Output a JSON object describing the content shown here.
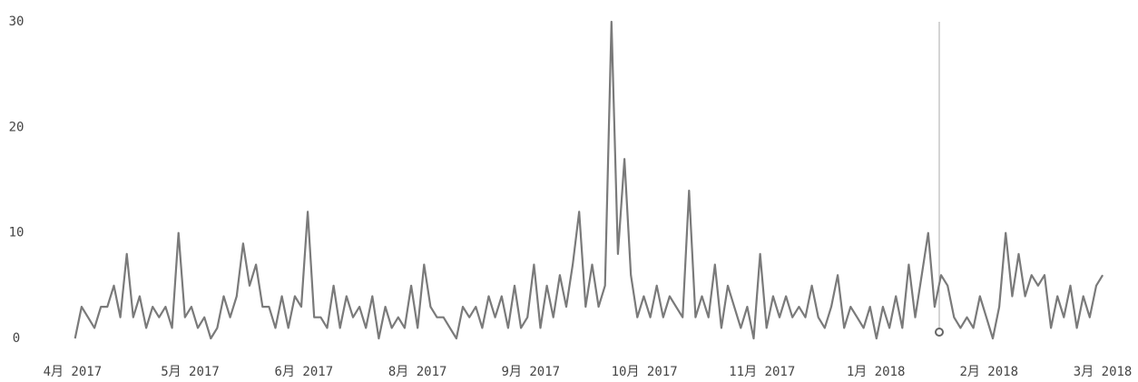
{
  "chart_data": {
    "type": "line",
    "series": [
      {
        "color": "#7a7a7a",
        "values": [
          0,
          3,
          2,
          1,
          3,
          3,
          5,
          2,
          8,
          2,
          4,
          1,
          3,
          2,
          3,
          1,
          10,
          2,
          3,
          1,
          2,
          0,
          1,
          4,
          2,
          4,
          9,
          5,
          7,
          3,
          3,
          1,
          4,
          1,
          4,
          3,
          12,
          2,
          2,
          1,
          5,
          1,
          4,
          2,
          3,
          1,
          4,
          0,
          3,
          1,
          2,
          1,
          5,
          1,
          7,
          3,
          2,
          2,
          1,
          0,
          3,
          2,
          3,
          1,
          4,
          2,
          4,
          1,
          5,
          1,
          2,
          7,
          1,
          5,
          2,
          6,
          3,
          7,
          12,
          3,
          7,
          3,
          5,
          30,
          8,
          17,
          6,
          2,
          4,
          2,
          5,
          2,
          4,
          3,
          2,
          14,
          2,
          4,
          2,
          7,
          1,
          5,
          3,
          1,
          3,
          0,
          8,
          1,
          4,
          2,
          4,
          2,
          3,
          2,
          5,
          2,
          1,
          3,
          6,
          1,
          3,
          2,
          1,
          3,
          0,
          3,
          1,
          4,
          1,
          7,
          2,
          6,
          10,
          3,
          6,
          5,
          2,
          1,
          2,
          1,
          4,
          2,
          0,
          3,
          10,
          4,
          8,
          4,
          6,
          5,
          6,
          1,
          4,
          2,
          5,
          1,
          4,
          2,
          5,
          6
        ]
      }
    ],
    "xlim": [
      -6,
      162.5
    ],
    "xticks": [
      {
        "value": -0.4,
        "label": "4月 2017"
      },
      {
        "value": 17.8,
        "label": "5月 2017"
      },
      {
        "value": 35.4,
        "label": "6月 2017"
      },
      {
        "value": 53,
        "label": "8月 2017"
      },
      {
        "value": 70.5,
        "label": "9月 2017"
      },
      {
        "value": 88.1,
        "label": "10月 2017"
      },
      {
        "value": 106.3,
        "label": "11月 2017"
      },
      {
        "value": 123.9,
        "label": "1月 2018"
      },
      {
        "value": 141.4,
        "label": "2月 2018"
      },
      {
        "value": 159,
        "label": "3月 2018"
      }
    ],
    "ylim": [
      0,
      30
    ],
    "yticks": [
      0,
      10,
      20,
      30
    ],
    "grid": false
  }
}
